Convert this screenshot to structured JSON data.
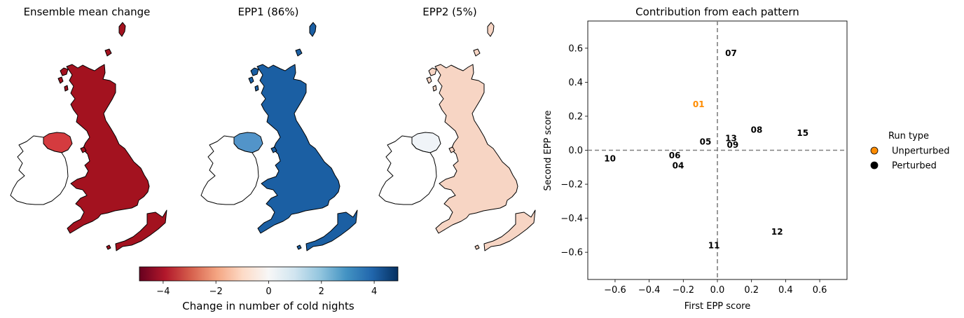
{
  "maps": [
    {
      "title": "Ensemble mean change",
      "fill": "#a3121f",
      "fill_ni": "#d43b3f"
    },
    {
      "title": "EPP1 (86%)",
      "fill": "#1b5fa3",
      "fill_ni": "#5294c9"
    },
    {
      "title": "EPP2 (5%)",
      "fill": "#f7d5c4",
      "fill_ni": "#f0f4f8"
    }
  ],
  "colorbar": {
    "label": "Change in number of cold nights",
    "ticks": [
      "−4",
      "−2",
      "0",
      "2",
      "4"
    ],
    "tick_values": [
      -4,
      -2,
      0,
      2,
      4
    ],
    "range": [
      -4.9,
      4.9
    ],
    "colors": [
      "#67001f",
      "#b2182b",
      "#d6604d",
      "#f4a582",
      "#fddbc7",
      "#f7f7f7",
      "#d1e5f0",
      "#92c5de",
      "#4393c3",
      "#2166ac",
      "#053061"
    ]
  },
  "chart_data": {
    "type": "scatter",
    "title": "Contribution from each pattern",
    "xlabel": "First EPP score",
    "ylabel": "Second EPP score",
    "xlim": [
      -0.76,
      0.76
    ],
    "ylim": [
      -0.76,
      0.76
    ],
    "xticks": [
      -0.6,
      -0.4,
      -0.2,
      0.0,
      0.2,
      0.4,
      0.6
    ],
    "xtick_labels": [
      "−0.6",
      "−0.4",
      "−0.2",
      "0.0",
      "0.2",
      "0.4",
      "0.6"
    ],
    "yticks": [
      -0.6,
      -0.4,
      -0.2,
      0.0,
      0.2,
      0.4,
      0.6
    ],
    "ytick_labels": [
      "−0.6",
      "−0.4",
      "−0.2",
      "0.0",
      "0.2",
      "0.4",
      "0.6"
    ],
    "reference_lines": {
      "x": 0,
      "y": 0,
      "style": "dashed",
      "color": "#808080"
    },
    "points": [
      {
        "label": "01",
        "x": -0.11,
        "y": 0.27,
        "type": "unperturbed"
      },
      {
        "label": "04",
        "x": -0.23,
        "y": -0.09,
        "type": "perturbed"
      },
      {
        "label": "05",
        "x": -0.07,
        "y": 0.05,
        "type": "perturbed"
      },
      {
        "label": "06",
        "x": -0.25,
        "y": -0.03,
        "type": "perturbed"
      },
      {
        "label": "07",
        "x": 0.08,
        "y": 0.57,
        "type": "perturbed"
      },
      {
        "label": "08",
        "x": 0.23,
        "y": 0.12,
        "type": "perturbed"
      },
      {
        "label": "09",
        "x": 0.09,
        "y": 0.03,
        "type": "perturbed"
      },
      {
        "label": "10",
        "x": -0.63,
        "y": -0.05,
        "type": "perturbed"
      },
      {
        "label": "11",
        "x": -0.02,
        "y": -0.56,
        "type": "perturbed"
      },
      {
        "label": "12",
        "x": 0.35,
        "y": -0.48,
        "type": "perturbed"
      },
      {
        "label": "13",
        "x": 0.08,
        "y": 0.07,
        "type": "perturbed"
      },
      {
        "label": "15",
        "x": 0.5,
        "y": 0.1,
        "type": "perturbed"
      }
    ],
    "legend": {
      "title": "Run type",
      "placement": "right",
      "entries": [
        {
          "label": "Unperturbed",
          "color": "#ff8c00"
        },
        {
          "label": "Perturbed",
          "color": "#000000"
        }
      ]
    },
    "colors": {
      "unperturbed": "#ff8c00",
      "perturbed": "#000000"
    }
  }
}
